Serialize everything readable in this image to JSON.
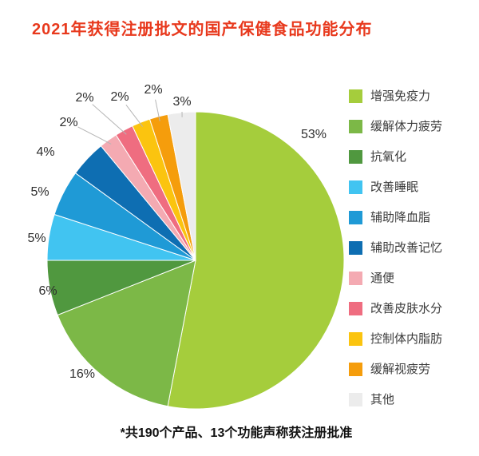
{
  "title": "2021年获得注册批文的国产保健食品功能分布",
  "footnote": "*共190个产品、13个功能声称获注册批准",
  "colors": {
    "title": "#e8391d",
    "footnote": "#111111",
    "slice_label_text": "#2e2e2e",
    "legend_text": "#3c3c3c"
  },
  "chart_data": {
    "type": "pie",
    "title": "2021年获得注册批文的国产保健食品功能分布",
    "legend_position": "right",
    "start_angle_deg": 0,
    "direction": "clockwise",
    "total_percent": 100,
    "slices": [
      {
        "label": "增强免疫力",
        "value": 53,
        "percent_label": "53%",
        "color": "#a5cd3c"
      },
      {
        "label": "缓解体力疲劳",
        "value": 16,
        "percent_label": "16%",
        "color": "#7cb847"
      },
      {
        "label": "抗氧化",
        "value": 6,
        "percent_label": "6%",
        "color": "#50983f"
      },
      {
        "label": "改善睡眠",
        "value": 5,
        "percent_label": "5%",
        "color": "#41c4f1"
      },
      {
        "label": "辅助降血脂",
        "value": 5,
        "percent_label": "5%",
        "color": "#1f9ad6"
      },
      {
        "label": "辅助改善记忆",
        "value": 4,
        "percent_label": "4%",
        "color": "#0e6eb2"
      },
      {
        "label": "通便",
        "value": 2,
        "percent_label": "2%",
        "color": "#f4aab2"
      },
      {
        "label": "改善皮肤水分",
        "value": 2,
        "percent_label": "2%",
        "color": "#ef6d80"
      },
      {
        "label": "控制体内脂肪",
        "value": 2,
        "percent_label": "2%",
        "color": "#fbc40f"
      },
      {
        "label": "缓解视疲劳",
        "value": 2,
        "percent_label": "2%",
        "color": "#f59d0c"
      },
      {
        "label": "其他",
        "value": 3,
        "percent_label": "3%",
        "color": "#ececec"
      }
    ]
  }
}
